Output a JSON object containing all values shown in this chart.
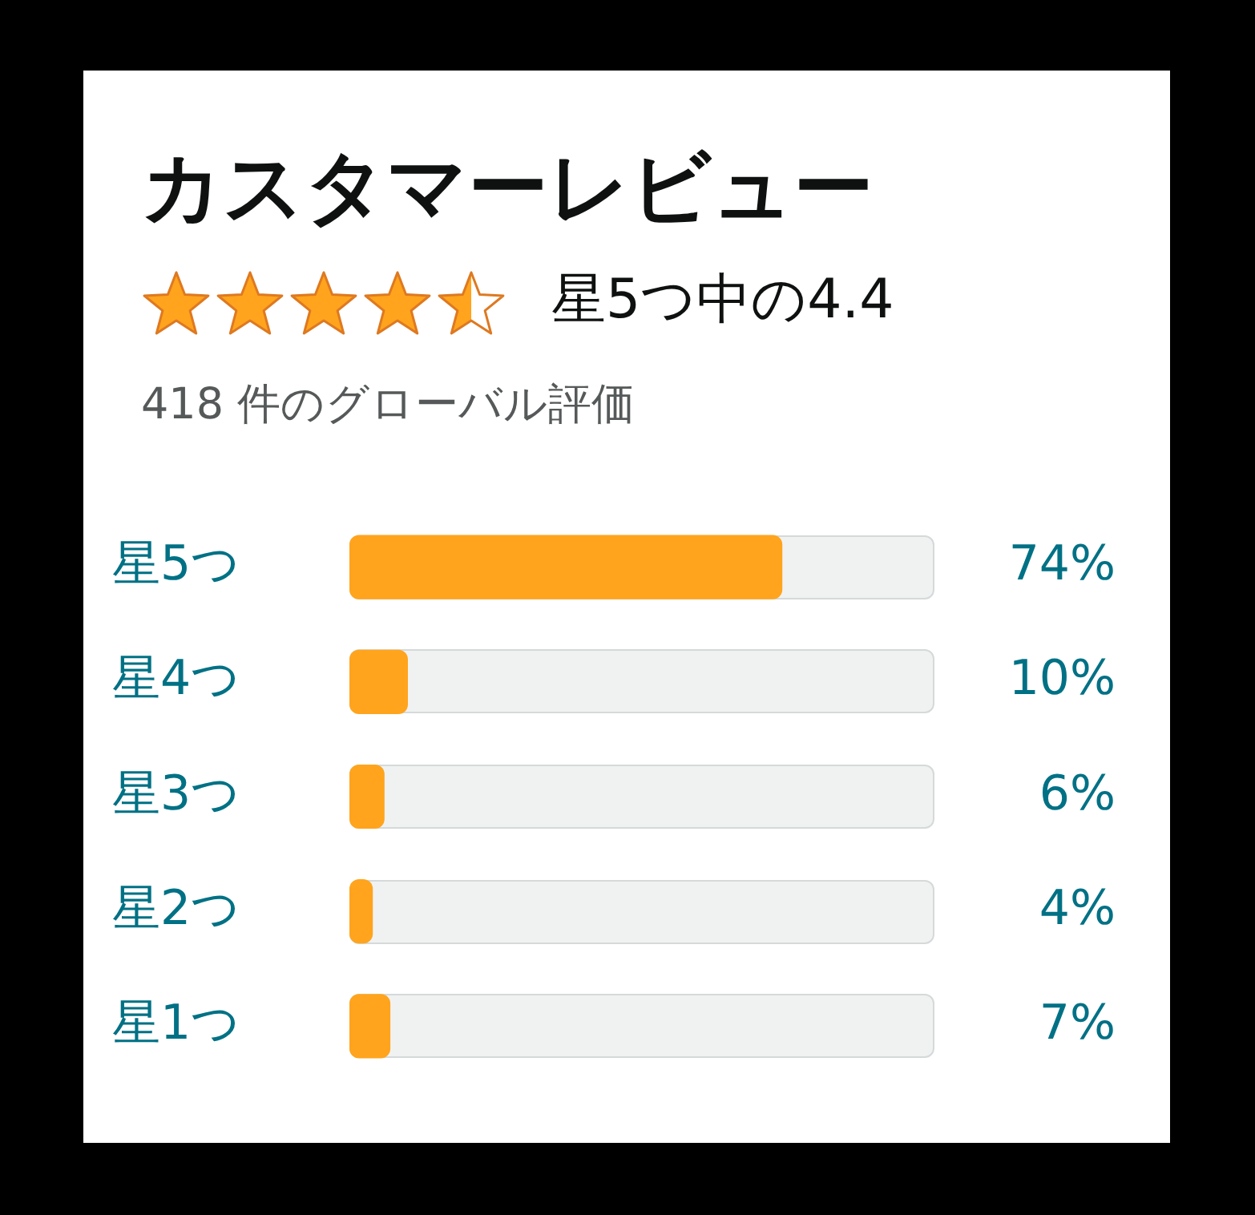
{
  "chart_data": {
    "type": "bar",
    "orientation": "horizontal",
    "title": "カスタマーレビュー",
    "subtitle": "星5つ中の4.4",
    "annotations": [
      "418 件のグローバル評価"
    ],
    "categories": [
      "星5つ",
      "星4つ",
      "星3つ",
      "星2つ",
      "星1つ"
    ],
    "values": [
      74,
      10,
      6,
      4,
      7
    ],
    "value_labels": [
      "74%",
      "10%",
      "6%",
      "4%",
      "7%"
    ],
    "color": "#ffa41c",
    "xlim": [
      0,
      100
    ],
    "tick_labels": "y"
  }
}
